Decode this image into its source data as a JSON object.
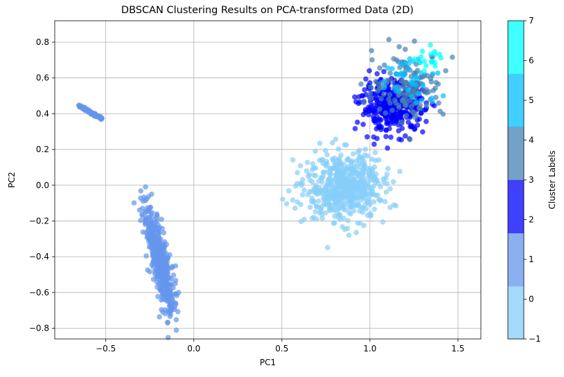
{
  "chart_data": {
    "type": "scatter",
    "title": "DBSCAN Clustering Results on PCA-transformed Data (2D)",
    "xlabel": "PC1",
    "ylabel": "PC2",
    "xlim": [
      -0.79,
      1.63
    ],
    "ylim": [
      -0.86,
      0.92
    ],
    "xticks": [
      -0.5,
      0.0,
      0.5,
      1.0,
      1.5
    ],
    "yticks": [
      -0.8,
      -0.6,
      -0.4,
      -0.2,
      0.0,
      0.2,
      0.4,
      0.6,
      0.8
    ],
    "grid": true,
    "colorbar": {
      "label": "Cluster Labels",
      "range": [
        -1,
        7
      ],
      "ticks": [
        -1,
        0,
        1,
        2,
        3,
        4,
        5,
        6,
        7
      ],
      "colors": [
        "#87cefa",
        "#6495ed",
        "#0000ff",
        "#4682b4",
        "#00bfff",
        "#00ffff"
      ]
    },
    "series": [
      {
        "color": "#6495ed",
        "shape": "diagonal-strand",
        "center": [
          -0.59,
          0.41
        ],
        "from": [
          -0.66,
          0.45
        ],
        "to": [
          -0.52,
          0.37
        ],
        "n_points": 70
      },
      {
        "color": "#6495ed",
        "shape": "elongated-cluster",
        "center": [
          -0.18,
          -0.47
        ],
        "from": [
          -0.28,
          -0.05
        ],
        "to": [
          -0.12,
          -0.75
        ],
        "n_points": 450
      },
      {
        "color": "#87cefa",
        "shape": "cluster",
        "center": [
          0.85,
          -0.01
        ],
        "spread": [
          0.11,
          0.09
        ],
        "n_points": 600
      },
      {
        "color": "#0000ff",
        "shape": "cluster",
        "center": [
          1.13,
          0.44
        ],
        "spread": [
          0.09,
          0.07
        ],
        "n_points": 380
      },
      {
        "color": "#4682b4",
        "shape": "cluster",
        "center": [
          1.22,
          0.56
        ],
        "spread": [
          0.1,
          0.09
        ],
        "n_points": 150
      },
      {
        "color": "#00bfff",
        "shape": "cluster",
        "center": [
          1.22,
          0.58
        ],
        "spread": [
          0.09,
          0.08
        ],
        "n_points": 40
      },
      {
        "color": "#00ffff",
        "shape": "cluster",
        "center": [
          1.35,
          0.7
        ],
        "spread": [
          0.04,
          0.04
        ],
        "n_points": 18
      }
    ]
  }
}
